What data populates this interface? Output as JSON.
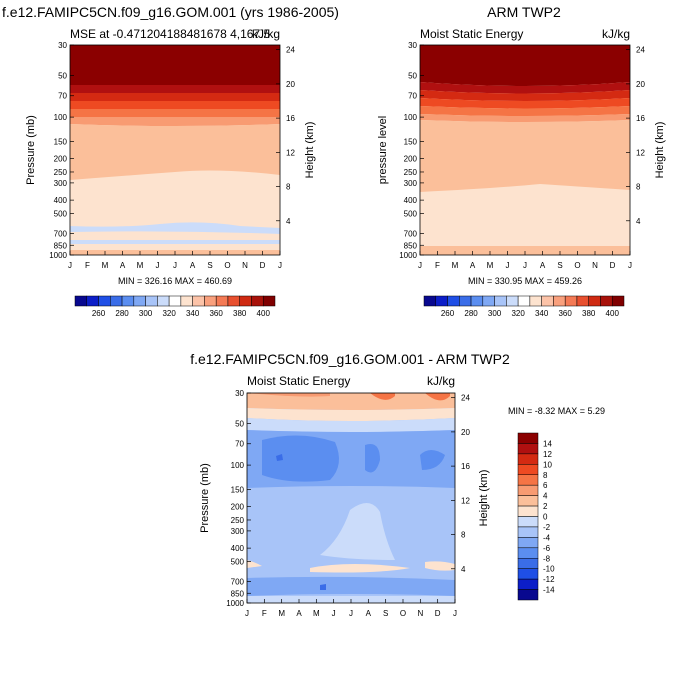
{
  "chart_data": [
    {
      "type": "heatmap",
      "title": "f.e12.FAMIPC5CN.f09_g16.GOM.001 (yrs 1986-2005)",
      "subtitle_left": "MSE at -0.471204188481678 4,167.5",
      "subtitle_right": "kJ/kg",
      "ylabel": "Pressure (mb)",
      "ylabel_right": "Height (km)",
      "x_ticks": [
        "J",
        "F",
        "M",
        "A",
        "M",
        "J",
        "J",
        "A",
        "S",
        "O",
        "N",
        "D",
        "J"
      ],
      "y_ticks": [
        "30",
        "50",
        "70",
        "100",
        "150",
        "200",
        "250",
        "300",
        "400",
        "500",
        "700",
        "850",
        "1000"
      ],
      "y_right_ticks": [
        "24",
        "20",
        "16",
        "12",
        "8",
        "4"
      ],
      "minmax_text": "MIN = 326.16   MAX = 460.69",
      "colorbar_labels": [
        "260",
        "280",
        "300",
        "320",
        "340",
        "360",
        "380",
        "400"
      ],
      "min": 326.16,
      "max": 460.69
    },
    {
      "type": "heatmap",
      "title": "ARM TWP2",
      "subtitle_left": "Moist Static Energy",
      "subtitle_right": "kJ/kg",
      "ylabel": "pressure level",
      "ylabel_right": "Height (km)",
      "x_ticks": [
        "J",
        "F",
        "M",
        "A",
        "M",
        "J",
        "J",
        "A",
        "S",
        "O",
        "N",
        "D",
        "J"
      ],
      "y_ticks": [
        "30",
        "50",
        "70",
        "100",
        "150",
        "200",
        "250",
        "300",
        "400",
        "500",
        "700",
        "850",
        "1000"
      ],
      "y_right_ticks": [
        "24",
        "20",
        "16",
        "12",
        "8",
        "4"
      ],
      "minmax_text": "MIN = 330.95   MAX = 459.26",
      "colorbar_labels": [
        "260",
        "280",
        "300",
        "320",
        "340",
        "360",
        "380",
        "400"
      ],
      "min": 330.95,
      "max": 459.26
    },
    {
      "type": "heatmap",
      "title": "f.e12.FAMIPC5CN.f09_g16.GOM.001 - ARM TWP2",
      "subtitle_left": "Moist Static Energy",
      "subtitle_right": "kJ/kg",
      "ylabel": "Pressure (mb)",
      "ylabel_right": "Height (km)",
      "x_ticks": [
        "J",
        "F",
        "M",
        "A",
        "M",
        "J",
        "J",
        "A",
        "S",
        "O",
        "N",
        "D",
        "J"
      ],
      "y_ticks": [
        "30",
        "50",
        "70",
        "100",
        "150",
        "200",
        "250",
        "300",
        "400",
        "500",
        "700",
        "850",
        "1000"
      ],
      "y_right_ticks": [
        "24",
        "20",
        "16",
        "12",
        "8",
        "4"
      ],
      "minmax_text": "MIN =  -8.32   MAX =    5.29",
      "colorbar_labels": [
        "14",
        "12",
        "10",
        "8",
        "6",
        "4",
        "2",
        "0",
        "-2",
        "-4",
        "-6",
        "-8",
        "-10",
        "-12",
        "-14"
      ],
      "min": -8.32,
      "max": 5.29
    }
  ],
  "colors": {
    "diverging": [
      "#08088f",
      "#0c1ec8",
      "#1f4fe6",
      "#3a6de8",
      "#5b8ef0",
      "#7fa8f4",
      "#a8c4f8",
      "#cbdcfa",
      "#ffffff",
      "#fde3cf",
      "#fcc3a8",
      "#f9a07d",
      "#f47a55",
      "#e8502f",
      "#cf2a12",
      "#a8120a",
      "#800000"
    ],
    "diff_colorbar": [
      "#8b0000",
      "#b01010",
      "#d42a12",
      "#ee4a22",
      "#f57445",
      "#f89b72",
      "#fbbf9a",
      "#fde3cf",
      "#cbdcfa",
      "#a8c4f8",
      "#7fa8f4",
      "#5b8ef0",
      "#3a6de8",
      "#1f4fe6",
      "#0c1ec8",
      "#08088f"
    ]
  }
}
